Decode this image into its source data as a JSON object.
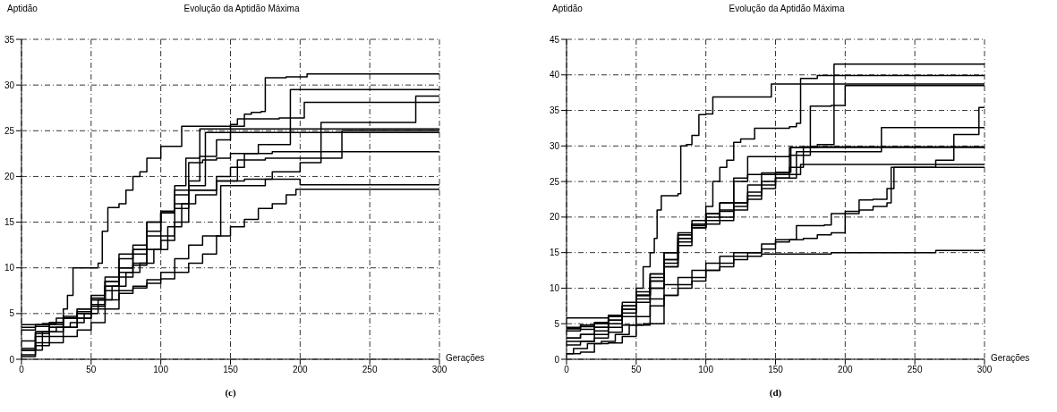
{
  "chart_data": [
    {
      "type": "step",
      "title": "Evolução da Aptidão Máxima",
      "ylabel": "Aptidão",
      "xlabel": "Gerações",
      "annotations": [
        "(c)"
      ],
      "xlim": [
        0,
        300
      ],
      "ylim": [
        0,
        35
      ],
      "xticks": [
        0,
        50,
        100,
        150,
        200,
        250,
        300
      ],
      "yticks": [
        0,
        5,
        10,
        15,
        20,
        25,
        30,
        35
      ],
      "grid": true,
      "marker": "none",
      "line_style": "solid",
      "series": [
        {
          "color": "#000000",
          "x": [
            0,
            5,
            15,
            25,
            30,
            33,
            37,
            45,
            55,
            58,
            62,
            70,
            75,
            80,
            85,
            90,
            95,
            100,
            108,
            115,
            150,
            155,
            160,
            165,
            172,
            175,
            190,
            205,
            300
          ],
          "values": [
            3.8,
            3.8,
            3.9,
            4.5,
            5.5,
            7,
            10,
            10,
            10.5,
            14,
            16.6,
            17,
            18.5,
            20,
            20.5,
            22,
            22,
            23.3,
            23.3,
            25.5,
            25.7,
            26.3,
            26.8,
            27,
            27.1,
            30.8,
            30.9,
            31.2,
            31.2
          ]
        },
        {
          "color": "#000000",
          "x": [
            0,
            10,
            20,
            30,
            40,
            50,
            60,
            70,
            80,
            90,
            100,
            110,
            120,
            130,
            140,
            150,
            170,
            193,
            300
          ],
          "values": [
            1,
            2.5,
            3.5,
            4.5,
            5.5,
            6.5,
            8.5,
            10,
            12,
            15,
            16,
            18.5,
            21.5,
            21.8,
            22,
            22.5,
            23.5,
            29.5,
            29.5
          ]
        },
        {
          "color": "#000000",
          "x": [
            0,
            10,
            20,
            30,
            40,
            50,
            60,
            70,
            80,
            90,
            100,
            110,
            120,
            140,
            160,
            180,
            200,
            215,
            283,
            300
          ],
          "values": [
            0.5,
            2.8,
            3,
            3.5,
            4.5,
            5.5,
            7.5,
            9,
            10.5,
            12,
            13.5,
            15,
            18.5,
            19.5,
            19.7,
            20.5,
            21.5,
            25.9,
            28.8,
            28.8
          ]
        },
        {
          "color": "#000000",
          "x": [
            0,
            10,
            20,
            30,
            40,
            50,
            60,
            70,
            80,
            90,
            100,
            110,
            118,
            128,
            140,
            150,
            160,
            185,
            203,
            300
          ],
          "values": [
            3.5,
            3.8,
            4,
            4.5,
            5,
            6.5,
            8,
            11,
            12,
            13.5,
            16,
            19,
            22,
            22.2,
            24,
            25.5,
            26.3,
            26.4,
            28.1,
            28.1
          ]
        },
        {
          "color": "#000000",
          "x": [
            0,
            10,
            20,
            30,
            40,
            50,
            60,
            70,
            80,
            90,
            100,
            110,
            120,
            128,
            300
          ],
          "values": [
            1.2,
            3,
            3.5,
            4.5,
            5,
            6,
            8.5,
            10,
            11.5,
            14,
            16,
            18,
            19.5,
            25.2,
            25.2
          ]
        },
        {
          "color": "#000000",
          "x": [
            0,
            10,
            20,
            30,
            40,
            50,
            60,
            70,
            80,
            90,
            100,
            110,
            120,
            132,
            300
          ],
          "values": [
            2,
            3,
            3.8,
            4.5,
            5.5,
            7,
            9,
            11.5,
            12.5,
            15,
            16.2,
            17,
            19,
            24.8,
            24.8
          ]
        },
        {
          "color": "#000000",
          "x": [
            0,
            10,
            20,
            30,
            40,
            50,
            60,
            70,
            80,
            90,
            100,
            110,
            120,
            140,
            155,
            175,
            190,
            230,
            300
          ],
          "values": [
            3.2,
            3.6,
            4,
            4.7,
            5.2,
            6.7,
            8,
            9.5,
            10.3,
            12,
            13,
            16.5,
            18.5,
            19.5,
            21.8,
            22,
            22,
            25,
            25
          ]
        },
        {
          "color": "#000000",
          "x": [
            0,
            15,
            25,
            35,
            45,
            55,
            65,
            75,
            85,
            95,
            105,
            115,
            125,
            140,
            150,
            160,
            180,
            300
          ],
          "values": [
            1,
            3,
            3.5,
            4,
            5,
            6.5,
            8,
            9.5,
            10.5,
            12,
            14.5,
            17,
            18,
            20,
            21,
            22.5,
            22.7,
            22.7
          ]
        },
        {
          "color": "#000000",
          "x": [
            0,
            10,
            20,
            30,
            40,
            50,
            60,
            70,
            80,
            90,
            100,
            110,
            120,
            130,
            143,
            175,
            200,
            300
          ],
          "values": [
            1,
            1.8,
            2.5,
            3.5,
            4.5,
            5.8,
            6.5,
            7.5,
            8,
            8.7,
            9.5,
            11,
            12.5,
            13.5,
            19,
            19.7,
            19.1,
            19.1
          ]
        },
        {
          "color": "#000000",
          "x": [
            0,
            10,
            20,
            30,
            40,
            50,
            60,
            70,
            80,
            90,
            100,
            110,
            120,
            130,
            140,
            150,
            160,
            170,
            180,
            190,
            197,
            300
          ],
          "values": [
            0.3,
            1.5,
            1.8,
            2.5,
            3.2,
            4,
            5.5,
            7.2,
            7.8,
            8.3,
            8.8,
            9.5,
            10.5,
            11.5,
            13.5,
            14.5,
            15.3,
            16.5,
            17,
            18,
            18.6,
            18.6
          ]
        }
      ]
    },
    {
      "type": "step",
      "title": "Evolução da Aptidão Máxima",
      "ylabel": "Aptidão",
      "xlabel": "Gerações",
      "annotations": [
        "(d)"
      ],
      "xlim": [
        0,
        300
      ],
      "ylim": [
        0,
        45
      ],
      "xticks": [
        0,
        50,
        100,
        150,
        200,
        250,
        300
      ],
      "yticks": [
        0,
        5,
        10,
        15,
        20,
        25,
        30,
        35,
        40,
        45
      ],
      "grid": true,
      "marker": "none",
      "line_style": "solid",
      "series": [
        {
          "color": "#000000",
          "x": [
            0,
            10,
            20,
            30,
            40,
            50,
            55,
            60,
            63,
            65,
            68,
            75,
            80,
            82,
            86,
            90,
            95,
            100,
            105,
            145,
            147,
            300
          ],
          "values": [
            4.5,
            4.8,
            5,
            6,
            8,
            10,
            13,
            15,
            17,
            21,
            23,
            23,
            23.3,
            30,
            30.2,
            31.5,
            34.4,
            34.5,
            36.9,
            36.9,
            38.7,
            38.7
          ]
        },
        {
          "color": "#000000",
          "x": [
            0,
            10,
            20,
            30,
            40,
            50,
            60,
            70,
            80,
            90,
            100,
            110,
            120,
            130,
            140,
            160,
            180,
            192,
            300
          ],
          "values": [
            4.3,
            4.6,
            5,
            6,
            7,
            9,
            11.5,
            14,
            17,
            19,
            20.5,
            22,
            25,
            26,
            26.2,
            29.8,
            30.2,
            41.5,
            41.5
          ]
        },
        {
          "color": "#000000",
          "x": [
            0,
            10,
            20,
            30,
            40,
            50,
            60,
            70,
            80,
            90,
            100,
            105,
            110,
            115,
            120,
            125,
            135,
            160,
            165,
            168,
            180,
            300
          ],
          "values": [
            3,
            3.5,
            4.5,
            5.5,
            7,
            9,
            12,
            15,
            17.5,
            19,
            21.5,
            25,
            27,
            28,
            30.5,
            31,
            32.5,
            32.7,
            33.2,
            39.5,
            39.9,
            39.9
          ]
        },
        {
          "color": "#000000",
          "x": [
            0,
            10,
            20,
            30,
            40,
            50,
            60,
            70,
            80,
            90,
            100,
            110,
            120,
            130,
            160,
            175,
            190,
            200,
            300
          ],
          "values": [
            2.5,
            2.5,
            3,
            4.5,
            6,
            8,
            10,
            13,
            17,
            19.5,
            20.5,
            22,
            25.5,
            28.5,
            28.7,
            35.6,
            35.7,
            38.5,
            38.5
          ]
        },
        {
          "color": "#000000",
          "x": [
            0,
            5,
            15,
            25,
            35,
            45,
            55,
            60,
            70,
            80,
            90,
            100,
            110,
            120,
            140,
            150,
            165,
            185,
            190,
            200,
            210,
            220,
            230,
            235,
            265,
            278,
            296,
            300
          ],
          "values": [
            0.8,
            1.5,
            2.2,
            2.5,
            3.5,
            4.8,
            5,
            8.5,
            10.5,
            11.5,
            12.5,
            13.5,
            14.5,
            15,
            16.2,
            16.8,
            18.8,
            18.9,
            20.5,
            20.8,
            22.4,
            22.5,
            24,
            27,
            28,
            31.6,
            35.4,
            35.4
          ]
        },
        {
          "color": "#000000",
          "x": [
            0,
            10,
            20,
            30,
            40,
            50,
            60,
            70,
            80,
            90,
            100,
            110,
            120,
            130,
            140,
            150,
            165,
            226,
            300
          ],
          "values": [
            4,
            4.2,
            4.5,
            5.5,
            7,
            9,
            12,
            15,
            17.5,
            18.8,
            19.5,
            21,
            22,
            23,
            24,
            25.5,
            29.2,
            32.6,
            32.6
          ]
        },
        {
          "color": "#000000",
          "x": [
            0,
            10,
            20,
            30,
            40,
            50,
            60,
            70,
            80,
            90,
            100,
            110,
            120,
            130,
            140,
            150,
            160,
            170,
            300
          ],
          "values": [
            4.3,
            4.8,
            5.2,
            6,
            7.5,
            9.5,
            11,
            13,
            16,
            18.5,
            20,
            20.8,
            22,
            23.5,
            25,
            26,
            27,
            29.9,
            29.9
          ]
        },
        {
          "color": "#000000",
          "x": [
            0,
            10,
            20,
            30,
            40,
            50,
            60,
            70,
            80,
            90,
            100,
            110,
            120,
            130,
            140,
            150,
            161,
            300
          ],
          "values": [
            5.8,
            5.8,
            5.8,
            6.2,
            7.5,
            9,
            11,
            14,
            17.8,
            18.5,
            20.5,
            20,
            21.5,
            24.5,
            26,
            26.3,
            29.8,
            29.8
          ]
        },
        {
          "color": "#000000",
          "x": [
            0,
            10,
            20,
            30,
            40,
            50,
            60,
            70,
            80,
            90,
            100,
            110,
            120,
            130,
            140,
            150,
            160,
            168,
            300
          ],
          "values": [
            3,
            3.5,
            4,
            5,
            6.5,
            8.5,
            10,
            13.5,
            16.5,
            18.5,
            19,
            19.5,
            21,
            22.5,
            24.5,
            25.5,
            26,
            27.4,
            27.4
          ]
        },
        {
          "color": "#000000",
          "x": [
            0,
            10,
            20,
            30,
            40,
            50,
            60,
            70,
            80,
            90,
            100,
            110,
            120,
            130,
            140,
            150,
            160,
            170,
            180,
            190,
            200,
            210,
            220,
            230,
            233,
            300
          ],
          "values": [
            0.8,
            1,
            2.2,
            2.3,
            3.2,
            4.8,
            5,
            9,
            10.5,
            11.5,
            12.5,
            13.5,
            14.5,
            15,
            15.5,
            16.5,
            16.8,
            17,
            17.5,
            17.8,
            20.5,
            21,
            21.5,
            22,
            27,
            27
          ]
        },
        {
          "color": "#000000",
          "x": [
            0,
            10,
            20,
            30,
            40,
            50,
            60,
            70,
            80,
            90,
            100,
            110,
            120,
            130,
            140,
            160,
            190,
            265,
            300
          ],
          "values": [
            2,
            2.5,
            3.5,
            3.8,
            4.8,
            6,
            7.5,
            9,
            10,
            11,
            12.5,
            13,
            14,
            14.5,
            14.8,
            14.8,
            15,
            15.3,
            15.3
          ]
        }
      ]
    }
  ]
}
